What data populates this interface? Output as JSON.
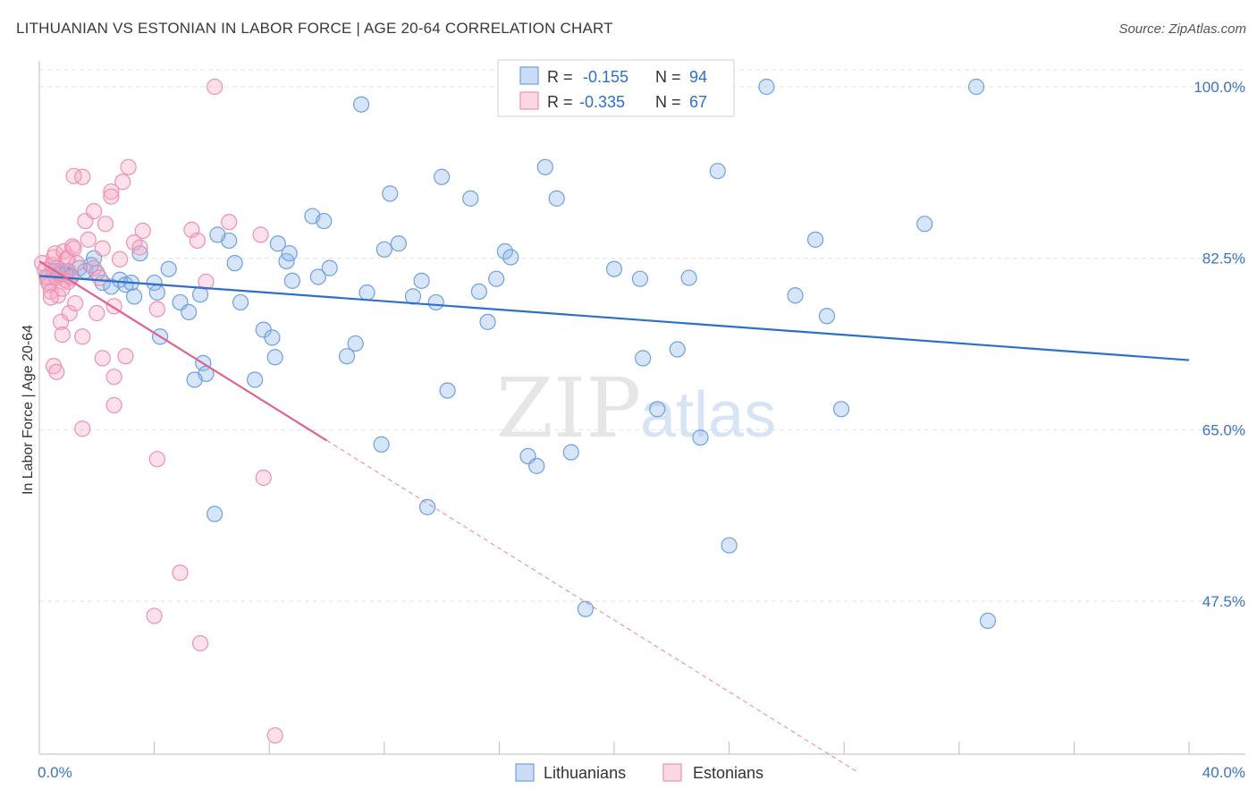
{
  "header": {
    "title": "LITHUANIAN VS ESTONIAN IN LABOR FORCE | AGE 20-64 CORRELATION CHART",
    "source": "Source: ZipAtlas.com"
  },
  "watermark": {
    "zip": "ZIP",
    "atlas": "atlas"
  },
  "colors": {
    "lithuanians": "#6fa0e0",
    "lithuanians_fill": "rgba(140,180,235,0.35)",
    "lithuanians_line": "#2e6fc9",
    "estonians": "#ef8fb0",
    "estonians_fill": "rgba(245,170,195,0.35)",
    "estonians_line": "#e0608e",
    "tick_label": "#3b73c4"
  },
  "legend": {
    "rows": [
      {
        "r_label": "R =",
        "r_value": "-0.155",
        "n_label": "N =",
        "n_value": "94"
      },
      {
        "r_label": "R =",
        "r_value": "-0.335",
        "n_label": "N =",
        "n_value": "67"
      }
    ]
  },
  "chart_data": {
    "type": "scatter",
    "title": "LITHUANIAN VS ESTONIAN IN LABOR FORCE | AGE 20-64 CORRELATION CHART",
    "xlabel": "",
    "ylabel": "In Labor Force | Age 20-64",
    "xlim": [
      0,
      40
    ],
    "ylim": [
      31,
      102
    ],
    "x_tick_labels": [
      "0.0%",
      "40.0%"
    ],
    "y_ticks": [
      47.5,
      65.0,
      82.5,
      100.0
    ],
    "y_tick_labels": [
      "47.5%",
      "65.0%",
      "82.5%",
      "100.0%"
    ],
    "grid": true,
    "legend_position": "top-center",
    "series": [
      {
        "name": "Lithuanians",
        "trend": {
          "x": [
            0,
            40
          ],
          "y": [
            80.7,
            72.1
          ]
        },
        "points": [
          [
            0.3,
            80.5
          ],
          [
            0.5,
            81.2
          ],
          [
            0.6,
            81.5
          ],
          [
            0.7,
            80.8
          ],
          [
            0.8,
            81.0
          ],
          [
            0.9,
            80.9
          ],
          [
            1.0,
            81.2
          ],
          [
            1.1,
            80.7
          ],
          [
            1.4,
            81.5
          ],
          [
            1.6,
            81.2
          ],
          [
            1.8,
            81.8
          ],
          [
            1.9,
            82.5
          ],
          [
            2.0,
            81.0
          ],
          [
            2.2,
            80.0
          ],
          [
            2.5,
            79.6
          ],
          [
            2.8,
            80.3
          ],
          [
            3.0,
            79.8
          ],
          [
            3.2,
            80.0
          ],
          [
            3.3,
            78.6
          ],
          [
            3.5,
            83.0
          ],
          [
            4.0,
            80.0
          ],
          [
            4.1,
            79.0
          ],
          [
            4.5,
            81.4
          ],
          [
            4.2,
            74.5
          ],
          [
            4.9,
            78.0
          ],
          [
            5.2,
            77.0
          ],
          [
            5.7,
            71.8
          ],
          [
            5.8,
            70.7
          ],
          [
            5.6,
            78.8
          ],
          [
            5.4,
            70.1
          ],
          [
            6.6,
            84.3
          ],
          [
            6.8,
            82.0
          ],
          [
            7.0,
            78.0
          ],
          [
            6.2,
            84.9
          ],
          [
            6.1,
            56.4
          ],
          [
            7.5,
            70.1
          ],
          [
            7.8,
            75.2
          ],
          [
            8.1,
            74.4
          ],
          [
            8.2,
            72.4
          ],
          [
            8.3,
            84.0
          ],
          [
            8.6,
            82.2
          ],
          [
            8.7,
            83.0
          ],
          [
            8.8,
            80.2
          ],
          [
            9.5,
            86.8
          ],
          [
            9.9,
            86.3
          ],
          [
            9.7,
            80.6
          ],
          [
            10.1,
            81.5
          ],
          [
            11.0,
            73.8
          ],
          [
            10.7,
            72.5
          ],
          [
            11.2,
            98.2
          ],
          [
            11.4,
            79.0
          ],
          [
            12.0,
            83.4
          ],
          [
            12.2,
            89.1
          ],
          [
            12.5,
            84.0
          ],
          [
            11.9,
            63.5
          ],
          [
            13.3,
            80.2
          ],
          [
            13.0,
            78.6
          ],
          [
            13.8,
            78.0
          ],
          [
            14.0,
            90.8
          ],
          [
            14.2,
            69.0
          ],
          [
            13.5,
            57.1
          ],
          [
            15.0,
            88.6
          ],
          [
            15.3,
            79.1
          ],
          [
            15.6,
            76.0
          ],
          [
            15.9,
            80.4
          ],
          [
            16.2,
            83.2
          ],
          [
            16.4,
            82.6
          ],
          [
            17.0,
            62.3
          ],
          [
            17.3,
            61.3
          ],
          [
            17.6,
            91.8
          ],
          [
            18.0,
            88.6
          ],
          [
            18.5,
            62.7
          ],
          [
            19.0,
            46.7
          ],
          [
            20.0,
            81.4
          ],
          [
            20.9,
            80.4
          ],
          [
            21.0,
            72.3
          ],
          [
            21.5,
            67.1
          ],
          [
            22.2,
            73.2
          ],
          [
            22.6,
            80.5
          ],
          [
            23.0,
            64.2
          ],
          [
            23.6,
            91.4
          ],
          [
            24.0,
            53.2
          ],
          [
            25.3,
            100.0
          ],
          [
            26.3,
            78.7
          ],
          [
            27.0,
            84.4
          ],
          [
            27.4,
            76.6
          ],
          [
            27.9,
            67.1
          ],
          [
            30.8,
            86.0
          ],
          [
            32.6,
            100.0
          ],
          [
            33.0,
            45.5
          ]
        ]
      },
      {
        "name": "Estonians",
        "trend": {
          "x": [
            0,
            10
          ],
          "y": [
            82.2,
            63.9
          ]
        },
        "trend_dashed": {
          "x": [
            10,
            28.5
          ],
          "y": [
            63.9,
            30.0
          ]
        },
        "points": [
          [
            0.1,
            82.0
          ],
          [
            0.2,
            81.3
          ],
          [
            0.25,
            80.6
          ],
          [
            0.3,
            80.1
          ],
          [
            0.35,
            79.8
          ],
          [
            0.4,
            79.1
          ],
          [
            0.45,
            81.8
          ],
          [
            0.5,
            82.6
          ],
          [
            0.55,
            83.0
          ],
          [
            0.6,
            80.5
          ],
          [
            0.65,
            78.7
          ],
          [
            0.7,
            81.0
          ],
          [
            0.75,
            76.0
          ],
          [
            0.8,
            74.7
          ],
          [
            0.85,
            83.2
          ],
          [
            0.9,
            80.3
          ],
          [
            0.95,
            82.4
          ],
          [
            1.0,
            82.6
          ],
          [
            1.05,
            76.9
          ],
          [
            1.1,
            80.5
          ],
          [
            1.15,
            83.7
          ],
          [
            1.2,
            83.5
          ],
          [
            1.25,
            77.9
          ],
          [
            1.3,
            82.0
          ],
          [
            0.5,
            71.5
          ],
          [
            1.2,
            90.9
          ],
          [
            1.5,
            90.8
          ],
          [
            1.5,
            74.5
          ],
          [
            1.5,
            65.1
          ],
          [
            1.6,
            86.3
          ],
          [
            1.7,
            84.4
          ],
          [
            1.9,
            87.3
          ],
          [
            1.9,
            81.5
          ],
          [
            2.1,
            80.5
          ],
          [
            2.0,
            76.9
          ],
          [
            2.2,
            83.5
          ],
          [
            2.3,
            86.0
          ],
          [
            2.2,
            72.3
          ],
          [
            2.5,
            89.3
          ],
          [
            2.5,
            88.8
          ],
          [
            2.6,
            67.5
          ],
          [
            2.6,
            70.4
          ],
          [
            2.6,
            77.6
          ],
          [
            2.8,
            82.4
          ],
          [
            2.9,
            90.3
          ],
          [
            3.0,
            72.5
          ],
          [
            3.1,
            91.8
          ],
          [
            3.3,
            84.1
          ],
          [
            3.5,
            83.6
          ],
          [
            3.6,
            85.3
          ],
          [
            4.1,
            62.0
          ],
          [
            4.1,
            77.3
          ],
          [
            4.0,
            46.0
          ],
          [
            4.9,
            50.4
          ],
          [
            5.3,
            85.4
          ],
          [
            5.5,
            84.3
          ],
          [
            5.8,
            80.1
          ],
          [
            5.6,
            43.2
          ],
          [
            6.1,
            100.0
          ],
          [
            6.6,
            86.2
          ],
          [
            7.7,
            84.9
          ],
          [
            7.8,
            60.1
          ],
          [
            8.2,
            33.8
          ],
          [
            0.6,
            70.9
          ],
          [
            1.0,
            80.1
          ],
          [
            0.8,
            79.4
          ],
          [
            0.4,
            78.5
          ]
        ]
      }
    ]
  },
  "bottom_legend": {
    "items": [
      "Lithuanians",
      "Estonians"
    ]
  }
}
